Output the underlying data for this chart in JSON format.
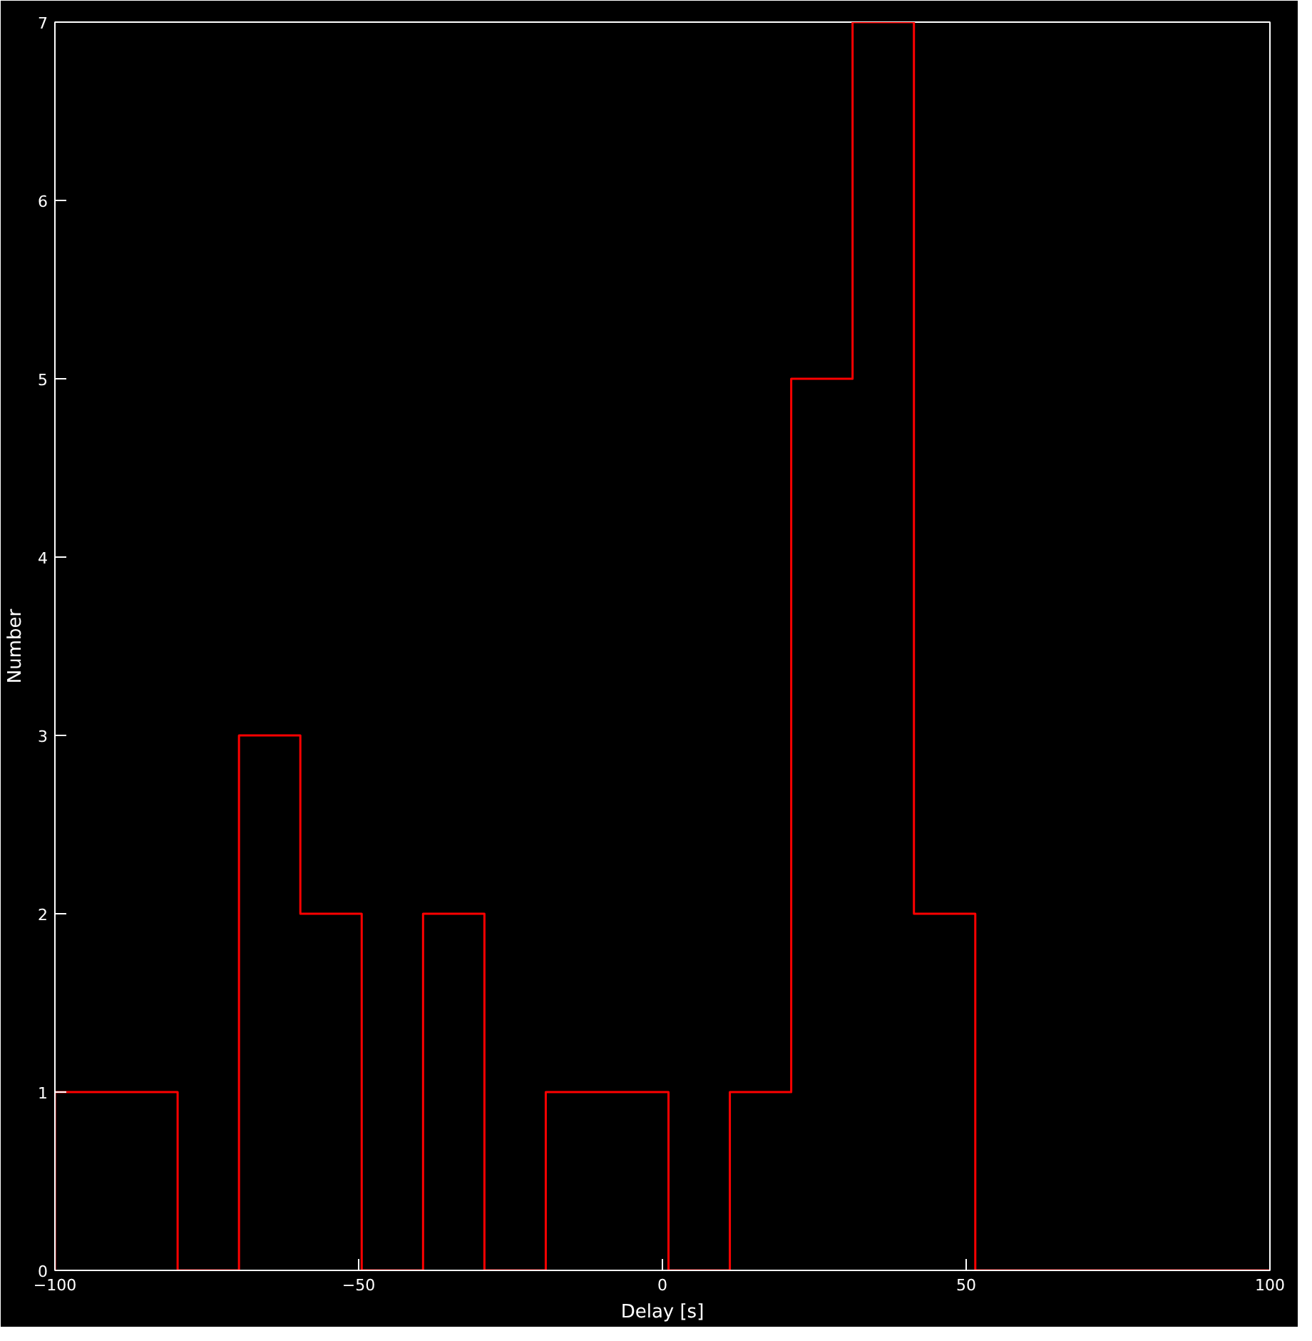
{
  "chart_data": {
    "type": "histogram",
    "xlabel": "Delay [s]",
    "ylabel": "Number",
    "color": "#ff0000",
    "bins": [
      -100,
      -89.9,
      -79.8,
      -69.7,
      -59.6,
      -49.5,
      -39.4,
      -29.3,
      -19.2,
      -9.1,
      1.0,
      11.1,
      21.2,
      31.3,
      41.4,
      51.5,
      61.6,
      71.7,
      81.8,
      91.9,
      100
    ],
    "values": [
      1,
      1,
      0,
      3,
      2,
      0,
      2,
      0,
      1,
      1,
      0,
      1,
      5,
      7,
      2,
      0,
      0,
      0,
      0,
      0
    ],
    "xlim": [
      -100,
      100
    ],
    "xticks": [
      -100,
      -50,
      0,
      50,
      100
    ],
    "ylim": [
      0,
      7
    ],
    "yticks": [
      0,
      1,
      2,
      3,
      4,
      5,
      6,
      7
    ],
    "grid": false
  }
}
